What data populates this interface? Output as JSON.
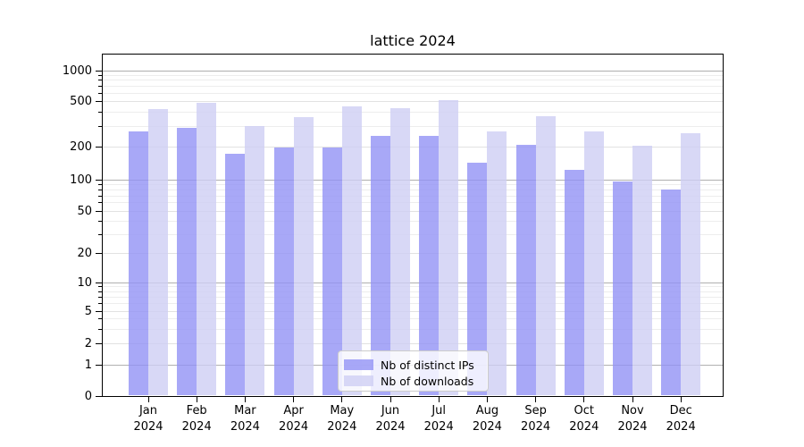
{
  "title": "lattice 2024",
  "chart_data": {
    "type": "bar",
    "title": "lattice 2024",
    "categories": [
      "Jan 2024",
      "Feb 2024",
      "Mar 2024",
      "Apr 2024",
      "May 2024",
      "Jun 2024",
      "Jul 2024",
      "Aug 2024",
      "Sep 2024",
      "Oct 2024",
      "Nov 2024",
      "Dec 2024"
    ],
    "series": [
      {
        "name": "Nb of distinct IPs",
        "color": "rgba(146,146,245,0.8)",
        "values": [
          270,
          293,
          172,
          196,
          197,
          246,
          247,
          142,
          207,
          123,
          96,
          80
        ]
      },
      {
        "name": "Nb of downloads",
        "color": "rgba(206,206,244,0.8)",
        "values": [
          428,
          480,
          300,
          364,
          450,
          430,
          508,
          272,
          370,
          270,
          202,
          260
        ]
      }
    ],
    "xlabel": "",
    "ylabel": "",
    "yscale": "log-like (symlog/asinh)",
    "ylim": [
      0,
      1300
    ],
    "yticks": [
      0,
      1,
      2,
      5,
      10,
      20,
      50,
      100,
      200,
      500,
      1000
    ],
    "ytick_labels": [
      "0",
      "1",
      "2",
      "5",
      "10",
      "20",
      "50",
      "100",
      "200",
      "500",
      "1000"
    ],
    "grid": true,
    "legend_position": "lower center"
  },
  "legend": {
    "items": [
      {
        "label": "Nb of distinct IPs"
      },
      {
        "label": "Nb of downloads"
      }
    ]
  },
  "colors": {
    "bar_distinct_ips": "rgba(146,146,245,0.8)",
    "bar_downloads": "rgba(206,206,244,0.8)",
    "grid_major": "#b0b0b0",
    "grid_minor": "#ededed",
    "axis": "#000000",
    "legend_border": "#cccccc"
  }
}
